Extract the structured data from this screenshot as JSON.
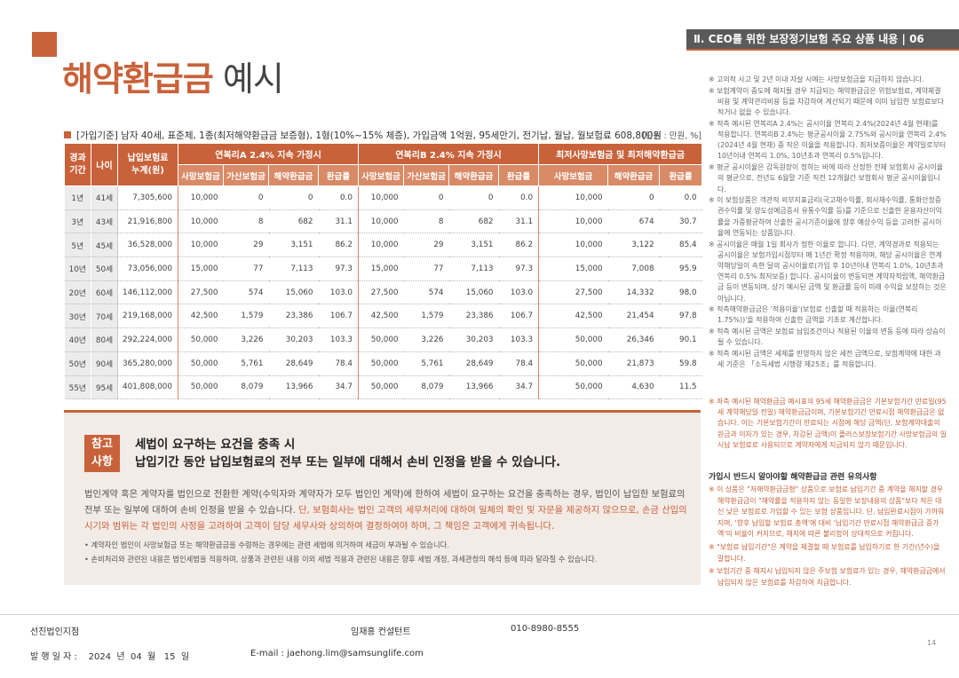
{
  "header": {
    "section": "Ⅱ. CEO를 위한 보장정기보험 주요 상품 내용 | 06",
    "title_accent": "해약환급금",
    "title_rest": " 예시"
  },
  "basis": {
    "text": "[가입기준] 남자 40세, 표준체, 1종(최저해약환급금 보증형), 1형(10%~15% 체증), 가입금액 1억원, 95세만기, 전기납, 월납, 월보험료 608,800원",
    "unit": "[단위 : 만원, %]"
  },
  "table": {
    "col_period": "경과\n기간",
    "col_age": "나이",
    "col_paid": "납입보험료\n누계(원)",
    "groups": [
      "연복리A 2.4% 지속 가정시",
      "연복리B 2.4% 지속 가정시",
      "최저사망보험금 및 최저해약환급금"
    ],
    "sub_g1": [
      "사망보험금",
      "가산보험금",
      "해약환급금",
      "환급률"
    ],
    "sub_g2": [
      "사망보험금",
      "가산보험금",
      "해약환급금",
      "환급률"
    ],
    "sub_g3": [
      "사망보험금",
      "해약환급금",
      "환급률"
    ],
    "rows": [
      [
        "1년",
        "41세",
        "7,305,600",
        "10,000",
        "0",
        "0",
        "0.0",
        "10,000",
        "0",
        "0",
        "0.0",
        "10,000",
        "0",
        "0.0"
      ],
      [
        "3년",
        "43세",
        "21,916,800",
        "10,000",
        "8",
        "682",
        "31.1",
        "10,000",
        "8",
        "682",
        "31.1",
        "10,000",
        "674",
        "30.7"
      ],
      [
        "5년",
        "45세",
        "36,528,000",
        "10,000",
        "29",
        "3,151",
        "86.2",
        "10,000",
        "29",
        "3,151",
        "86.2",
        "10,000",
        "3,122",
        "85.4"
      ],
      [
        "10년",
        "50세",
        "73,056,000",
        "15,000",
        "77",
        "7,113",
        "97.3",
        "15,000",
        "77",
        "7,113",
        "97.3",
        "15,000",
        "7,008",
        "95.9"
      ],
      [
        "20년",
        "60세",
        "146,112,000",
        "27,500",
        "574",
        "15,060",
        "103.0",
        "27,500",
        "574",
        "15,060",
        "103.0",
        "27,500",
        "14,332",
        "98.0"
      ],
      [
        "30년",
        "70세",
        "219,168,000",
        "42,500",
        "1,579",
        "23,386",
        "106.7",
        "42,500",
        "1,579",
        "23,386",
        "106.7",
        "42,500",
        "21,454",
        "97.8"
      ],
      [
        "40년",
        "80세",
        "292,224,000",
        "50,000",
        "3,226",
        "30,203",
        "103.3",
        "50,000",
        "3,226",
        "30,203",
        "103.3",
        "50,000",
        "26,346",
        "90.1"
      ],
      [
        "50년",
        "90세",
        "365,280,000",
        "50,000",
        "5,761",
        "28,649",
        "78.4",
        "50,000",
        "5,761",
        "28,649",
        "78.4",
        "50,000",
        "21,873",
        "59.8"
      ],
      [
        "55년",
        "95세",
        "401,808,000",
        "50,000",
        "8,079",
        "13,966",
        "34.7",
        "50,000",
        "8,079",
        "13,966",
        "34.7",
        "50,000",
        "4,630",
        "11.5"
      ]
    ]
  },
  "note": {
    "badge_line1": "참고",
    "badge_line2": "사항",
    "head_line1": "세법이 요구하는 요건을 충족 시",
    "head_line2": "납입기간 동안 납입보험료의 전부 또는 일부에 대해서 손비 인정을 받을 수 있습니다.",
    "body_plain": "법인계약 혹은 계약자를 법인으로 전환한 계약(수익자와 계약자가 모두 법인인 계약)에 한하여 세법이 요구하는 요건을 충족하는 경우, 법인이 납입한 보험료의 전부 또는 일부에 대하여 손비 인정을 받을 수 있습니다. ",
    "body_highlight": "단, 보험회사는 법인 고객의 세무처리에 대하여 일체의 확인 및 자문을 제공하지 않으므로, 손금 산입의 시기와 범위는 각 법인의 사정을 고려하여 고객이 담당 세무사와 상의하여 결정하여야 하며, 그 책임은 고객에게 귀속됩니다.",
    "bullet1": "• 계약자인 법인이 사망보험금 또는 해약환급금을 수령하는 경우에는 관련 세법에 의거하여 세금이 부과될 수 있습니다.",
    "bullet2": "• 손비처리와 관련된 내용은 법인세법을 적용하며, 상품과 관련된 내용 이외 세법 적용과 관련된 내용은 향후 세법 개정, 과세관청의 해석 등에 따라 달라질 수 있습니다."
  },
  "side_notes": [
    "※ 고의적 사고 및 2년 이내 자살 시에는 사망보험금을 지급하지 않습니다.",
    "※ 보험계약이 중도에 해지될 경우 지급되는 해약환급금은 위험보험료, 계약체결비용 및 계약관리비용 등을 차감하여 계산되기 때문에 이미 납입한 보험료보다 적거나 없을 수 있습니다.",
    "※ 적측 예시된 연복리A 2.4%는 공시이율 연복리 2.4%(2024년 4월 현재)를 적용합니다. 연복리B 2.4%는 평균공시이율 2.75%와 공시이율 연복리 2.4%(2024년 4월 현재) 중 작은 이율을 적용합니다. 최저보증이율은 계약일로부터 10년이내 연복리 1.0%, 10년초과 연복리 0.5%입니다.",
    "※ 평균 공시이율은 감독원장이 정하는 바에 따라 산정한 전체 보험회사 공시이율의 평균으로, 전년도 6월말 기준 직전 12개월간 보험회사 평균 공시이율입니다.",
    "※ 이 보험상품은 객관적 외부지표금리(국고채수익률, 회사채수익률, 통화안정증권수익률 및 양도성예금증서 유통수익률 등)를 기준으로 신출한 운용자산이익률을 가중평균하여 산출한 공시기준이율에 향후 예상수익 등을 고려한 공시이율에 연동되는 상품입니다.",
    "※ 공시이율은 매월 1일 회사가 정한 이율로 합니다. 다만, 계약경과로 적용되는 공시이율은 보험가입시점부터 매 1년간 확정 적용하며, 해당 공시이율은 연계약해당일이 속한 달의 공시이율로(가입 후 10년이내 연복리 1.0%, 10년초과 연복리 0.5% 최저보증) 합니다. 공시이율이 변동되면 계약자적립액, 해약환급금 등이 변동되며, 상기 예시된 금액 및 환급률 등이 미래 수익을 보장하는 것은 아닙니다.",
    "※ 적측해약환급금은 '적용이율'(보험료 신출할 때 적용하는 이율(연복리 1.75%))'을 적용하여 신출한 금액을 기초로 계산합니다.",
    "※ 적측 예시된 금액은 보험료 납입조건이나 적용된 이율의 변동 등에 따라 상승이될 수 있습니다.",
    "※ 적측 예시된 금액은 세제를 반영하지 않은 세전 금액으로, 보험계약에 대한 과세 기준은 「소득세법 시행령 제25조」를 적용합니다."
  ],
  "side_notes_red": [
    "※ 좌측 예시된 해약환급금 예시표의 95세 해약환급금은 기본보험기간 만료일(95세 계약해당일 전일) 해약환급금이며, 기본보험기간 만료시점 해약환급금은 없습니다. 이는 기본보험기간이 만료되는 시점에 해당 금액(단, 보험계약대출의 원금과 이자가 있는 경우, 차감된 금액)이 플러스보장보험기간 사망보험금의 일시납 보험료로 사용되므로 계약자에게 지급되지 않기 때문입니다."
  ],
  "side_caution_title": "가입시 반드시 알아야할 해약환급금 관련 유의사항",
  "side_caution": [
    "※ 이 상품은 \"저해약환급금형\" 상품으로 보험료 납입기간 중 계약을 해지할 경우 해약환급금이 \"해약률을 적용하지 않는 동일한 보장내용의 상품\"보다 적은 대신 낮은 보험료로 가입할 수 있는 보험 상품입니다. 단, 납입완료시점이 가까워지며, '향후 납입할 보험료 총액'에 대비 '납입기간 만료시점 해약환급금 증가액'의 비율이 커지므로, 해지에 따른 불리함이 상대적으로 커집니다.",
    "※ \"보험료 납입기간\"은 계약을 체결할 때 보험료를 납입하기로 한 기간(년수)을 말합니다.",
    "※ 보험기간 중 해지시 납입되지 않은 주보험 보험료가 있는 경우, 해약환급금에서 납입되지 않은 보험료를 차감하여 지급합니다."
  ],
  "footer": {
    "company": "선진법인지점",
    "consultant": "임재홍 컨설턴트",
    "phone": "010-8980-8555",
    "page": "14",
    "date": "발 행 일 자 :    2024  년  04  월   15  일",
    "email": "E-mail : jaehong.lim@samsunglife.com"
  }
}
